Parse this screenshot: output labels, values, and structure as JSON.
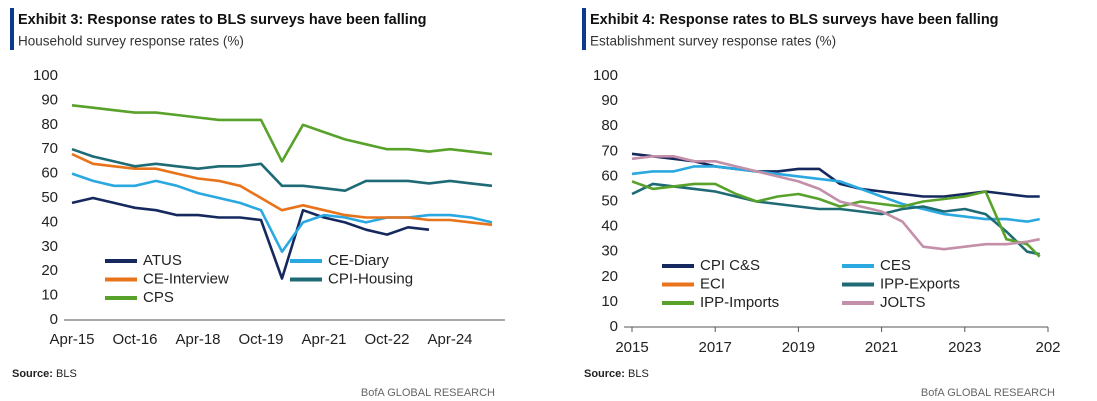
{
  "chart_data": [
    {
      "type": "line",
      "title": "Exhibit 3: Response rates to BLS surveys have been falling",
      "subtitle": "Household survey response rates (%)",
      "source_label": "Source:",
      "source": "BLS",
      "footer": "BofA GLOBAL RESEARCH",
      "categories": [
        "Apr-15",
        null,
        null,
        "Oct-16",
        null,
        null,
        "Apr-18",
        null,
        null,
        "Oct-19",
        null,
        null,
        "Apr-21",
        null,
        null,
        "Oct-22",
        null,
        null,
        "Apr-24",
        null,
        null
      ],
      "ylim": [
        0,
        100
      ],
      "yticks": [
        0,
        10,
        20,
        30,
        40,
        50,
        60,
        70,
        80,
        90,
        100
      ],
      "grid": false,
      "legend": "lower left",
      "series": [
        {
          "name": "ATUS",
          "color": "#15295e",
          "values": [
            48,
            50,
            48,
            46,
            45,
            43,
            43,
            42,
            42,
            41,
            17,
            45,
            42,
            40,
            37,
            35,
            38,
            37,
            null,
            null,
            null
          ]
        },
        {
          "name": "CE-Diary",
          "color": "#2aa8e0",
          "values": [
            60,
            57,
            55,
            55,
            57,
            55,
            52,
            50,
            48,
            45,
            28,
            40,
            43,
            42,
            40,
            42,
            42,
            43,
            43,
            42,
            40
          ]
        },
        {
          "name": "CE-Interview",
          "color": "#e8731a",
          "values": [
            68,
            64,
            63,
            62,
            62,
            60,
            58,
            57,
            55,
            50,
            45,
            47,
            45,
            43,
            42,
            42,
            42,
            41,
            41,
            40,
            39
          ]
        },
        {
          "name": "CPI-Housing",
          "color": "#1e6b75",
          "values": [
            70,
            67,
            65,
            63,
            64,
            63,
            62,
            63,
            63,
            64,
            55,
            55,
            54,
            53,
            57,
            57,
            57,
            56,
            57,
            56,
            55
          ]
        },
        {
          "name": "CPS",
          "color": "#58a22b",
          "values": [
            88,
            87,
            86,
            85,
            85,
            84,
            83,
            82,
            82,
            82,
            65,
            80,
            77,
            74,
            72,
            70,
            70,
            69,
            70,
            69,
            68
          ]
        }
      ]
    },
    {
      "type": "line",
      "title": "Exhibit 4: Response rates to BLS surveys have been falling",
      "subtitle": "Establishment survey response rates (%)",
      "source_label": "Source:",
      "source": "BLS",
      "footer": "BofA GLOBAL RESEARCH",
      "x": [
        2015,
        2015.5,
        2016,
        2016.5,
        2017,
        2017.5,
        2018,
        2018.5,
        2019,
        2019.5,
        2020,
        2020.5,
        2021,
        2021.5,
        2022,
        2022.5,
        2023,
        2023.5,
        2024,
        2024.5,
        2024.8
      ],
      "xlim": [
        2015,
        2025
      ],
      "xticks": [
        2015,
        2017,
        2019,
        2021,
        2023,
        {
          "value": 2025,
          "label": "202"
        }
      ],
      "ylim": [
        0,
        100
      ],
      "yticks": [
        0,
        10,
        20,
        30,
        40,
        50,
        60,
        70,
        80,
        90,
        100
      ],
      "grid": false,
      "legend": "lower left",
      "series": [
        {
          "name": "CPI C&S",
          "color": "#15295e",
          "values": [
            69,
            68,
            67,
            66,
            64,
            63,
            62,
            62,
            63,
            63,
            57,
            55,
            54,
            53,
            52,
            52,
            53,
            54,
            53,
            52,
            52
          ]
        },
        {
          "name": "CES",
          "color": "#2aa8e0",
          "values": [
            61,
            62,
            62,
            64,
            64,
            63,
            62,
            61,
            60,
            59,
            58,
            55,
            52,
            49,
            47,
            45,
            44,
            43,
            43,
            42,
            43
          ]
        },
        {
          "name": "ECI",
          "color": "#e8731a",
          "values": [
            null,
            null,
            null,
            null,
            null,
            null,
            null,
            null,
            null,
            null,
            null,
            null,
            null,
            null,
            null,
            null,
            null,
            null,
            null,
            null,
            null
          ]
        },
        {
          "name": "IPP-Exports",
          "color": "#1e6b75",
          "values": [
            53,
            57,
            56,
            55,
            54,
            52,
            50,
            49,
            48,
            47,
            47,
            46,
            45,
            47,
            48,
            46,
            47,
            45,
            38,
            30,
            29
          ]
        },
        {
          "name": "IPP-Imports",
          "color": "#58a22b",
          "values": [
            58,
            55,
            56,
            57,
            57,
            53,
            50,
            52,
            53,
            51,
            48,
            50,
            49,
            48,
            50,
            51,
            52,
            54,
            35,
            33,
            28
          ]
        },
        {
          "name": "JOLTS",
          "color": "#c48fa8",
          "values": [
            67,
            68,
            68,
            66,
            66,
            64,
            62,
            60,
            58,
            55,
            50,
            48,
            46,
            42,
            32,
            31,
            32,
            33,
            33,
            34,
            35
          ]
        }
      ]
    }
  ]
}
